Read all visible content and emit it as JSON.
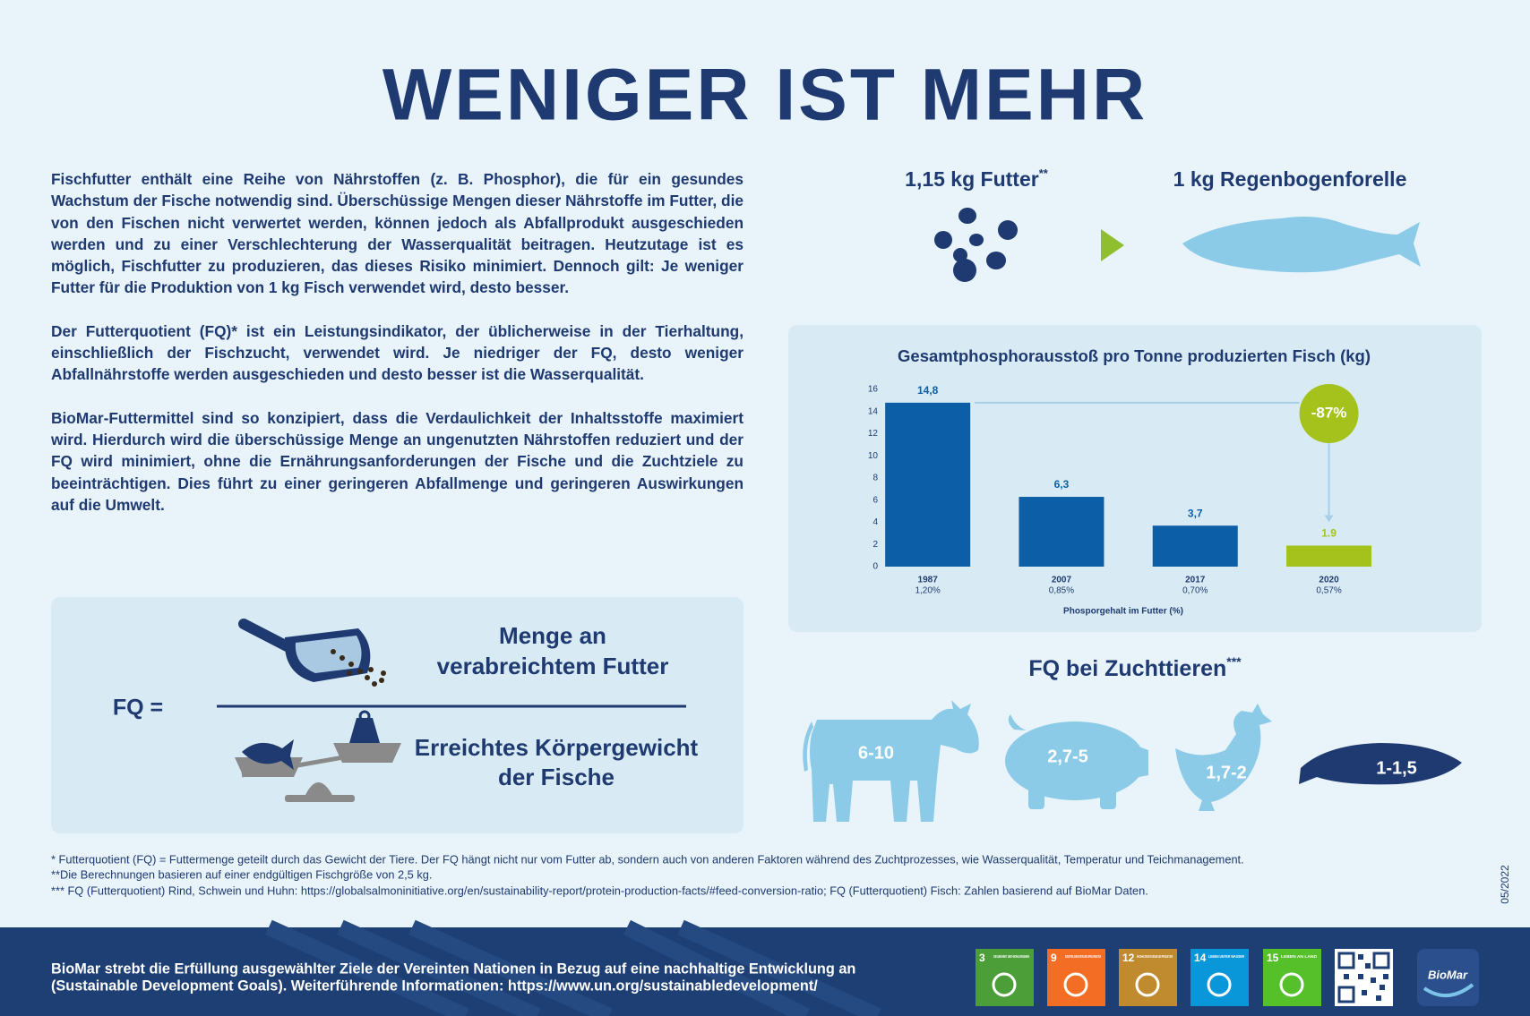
{
  "header": {
    "title": "WENIGER IST MEHR"
  },
  "intro": {
    "paragraphs": [
      "Fischfutter enthält eine Reihe von Nährstoffen (z. B. Phosphor), die für ein gesundes Wachstum der Fische notwendig sind. Überschüssige Mengen dieser Nährstoffe im Futter, die von den Fischen nicht verwertet werden, können jedoch als Abfallprodukt ausgeschieden werden und zu einer Verschlechterung der Wasserqualität beitragen. Heutzutage ist es möglich, Fischfutter zu produzieren, das dieses Risiko minimiert. Dennoch gilt: Je weniger Futter für die Produktion von 1 kg Fisch verwendet wird, desto besser.",
      "Der Futterquotient (FQ)* ist ein Leistungsindikator, der üblicherweise in der Tierhaltung, einschließlich der Fischzucht, verwendet wird. Je niedriger der FQ, desto weniger Abfallnährstoffe werden ausgeschieden und desto besser ist die Wasserqualität.",
      "BioMar-Futtermittel sind so konzipiert, dass die Verdaulichkeit der Inhaltsstoffe maximiert wird. Hierdurch wird die überschüssige Menge an ungenutzten Nährstoffen reduziert und der FQ wird minimiert, ohne die Ernährungsanforderungen der Fische und die Zuchtziele zu beeinträchtigen. Dies führt zu einer geringeren Abfallmenge und geringeren Auswirkungen auf die Umwelt."
    ]
  },
  "conversion": {
    "feed": "1,15 kg Futter",
    "feed_note": "**",
    "fish": "1 kg Regenbogenforelle"
  },
  "chart_data": {
    "type": "bar",
    "title": "Gesamtphosphorausstoß pro Tonne produzierten Fisch (kg)",
    "categories": [
      "1987",
      "2007",
      "2017",
      "2020"
    ],
    "sublabels": [
      "1,20%",
      "0,85%",
      "0,70%",
      "0,57%"
    ],
    "x_label": "Phosporgehalt im Futter (%)",
    "values": [
      14.8,
      6.3,
      3.7,
      1.9
    ],
    "value_labels": [
      "14,8",
      "6,3",
      "3,7",
      "1.9"
    ],
    "colors": [
      "#0c5fa6",
      "#0c5fa6",
      "#0c5fa6",
      "#a5c21c"
    ],
    "ylim": [
      0,
      16
    ],
    "yticks": [
      0,
      2,
      4,
      6,
      8,
      10,
      12,
      14,
      16
    ],
    "grid": false,
    "annotation": "-87%"
  },
  "fq_formula": {
    "lhs": "FQ =",
    "numerator": [
      "Menge an",
      "verabreichtem Futter"
    ],
    "denominator": [
      "Erreichtes Körpergewicht",
      "der Fische"
    ]
  },
  "fq_animals": {
    "title": "FQ bei Zuchttieren",
    "title_note": "***",
    "items": [
      {
        "label": "6-10"
      },
      {
        "label": "2,7-5"
      },
      {
        "label": "1,7-2"
      },
      {
        "label": "1-1,5"
      }
    ]
  },
  "footnotes": [
    "* Futterquotient (FQ) = Futtermenge geteilt durch das Gewicht der Tiere. Der FQ hängt nicht nur vom Futter ab, sondern auch von anderen Faktoren während des Zuchtprozesses, wie Wasserqualität, Temperatur und Teichmanagement.",
    "**Die Berechnungen basieren auf einer endgültigen Fischgröße von 2,5 kg.",
    "*** FQ (Futterquotient) Rind, Schwein und Huhn: https://globalsalmoninitiative.org/en/sustainability-report/protein-production-facts/#feed-conversion-ratio; FQ (Futterquotient) Fisch: Zahlen basierend auf BioMar Daten."
  ],
  "date": "05/2022",
  "footer": {
    "text": [
      "BioMar strebt die Erfüllung ausgewählter Ziele der Vereinten Nationen in Bezug auf eine nachhaltige Entwicklung an",
      "(Sustainable Development Goals). Weiterführende Informationen: https://www.un.org/sustainabledevelopment/"
    ],
    "sdgs": [
      {
        "number": "3",
        "label": "GESUNDHEIT UND WOHLERGEHEN"
      },
      {
        "number": "9",
        "label": "INDUSTRIE, INNOVATION UND INFRASTRUKTUR"
      },
      {
        "number": "12",
        "label": "NACHHALTIGE/R KONSUM UND PRODUKTION"
      },
      {
        "number": "14",
        "label": "LEBEN UNTER WASSER"
      },
      {
        "number": "15",
        "label": "LEBEN AN LAND"
      }
    ],
    "logo": "BioMar"
  }
}
